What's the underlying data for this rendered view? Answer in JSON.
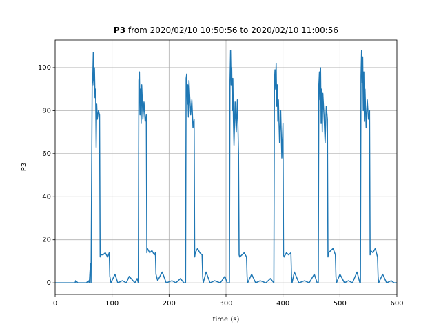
{
  "chart_data": {
    "type": "line",
    "title": {
      "bold": "P3",
      "rest": "from 2020/02/10 10:50:56 to 2020/02/10 11:00:56"
    },
    "xlabel": "time (s)",
    "ylabel": "P3",
    "x": [
      0,
      30,
      35,
      36,
      40,
      55,
      58,
      60,
      62,
      63,
      65,
      66,
      67,
      68,
      69,
      70,
      71,
      72,
      73,
      74,
      76,
      78,
      79,
      80,
      84,
      88,
      92,
      95,
      96,
      98,
      105,
      110,
      118,
      125,
      130,
      140,
      144,
      146,
      147,
      148,
      149,
      150,
      151,
      152,
      153,
      154,
      156,
      158,
      160,
      161,
      162,
      166,
      170,
      174,
      176,
      177,
      180,
      188,
      195,
      205,
      212,
      220,
      226,
      229,
      230,
      231,
      232,
      233,
      234,
      235,
      236,
      238,
      240,
      242,
      244,
      245,
      246,
      250,
      254,
      258,
      259,
      260,
      265,
      272,
      280,
      290,
      298,
      302,
      306,
      307,
      308,
      309,
      310,
      311,
      312,
      313,
      314,
      316,
      318,
      320,
      322,
      323,
      324,
      328,
      332,
      336,
      337,
      338,
      345,
      352,
      360,
      370,
      378,
      384,
      385,
      386,
      387,
      388,
      389,
      390,
      391,
      392,
      394,
      396,
      398,
      400,
      401,
      402,
      406,
      410,
      414,
      415,
      416,
      420,
      428,
      438,
      446,
      455,
      460,
      462,
      463,
      464,
      465,
      466,
      467,
      468,
      469,
      470,
      472,
      474,
      476,
      478,
      479,
      480,
      484,
      488,
      492,
      493,
      494,
      500,
      508,
      515,
      522,
      530,
      535,
      536,
      537,
      538,
      539,
      540,
      541,
      542,
      543,
      544,
      546,
      548,
      550,
      552,
      553,
      554,
      558,
      562,
      566,
      567,
      568,
      575,
      582,
      590,
      595,
      600
    ],
    "series": [
      {
        "name": "P3",
        "color": "#1f77b4",
        "values": [
          0,
          0,
          0,
          1,
          0,
          0,
          1,
          0,
          9,
          0,
          91,
          94,
          107,
          92,
          100,
          86,
          90,
          63,
          83,
          76,
          80,
          78,
          12,
          13,
          13,
          14,
          12,
          14,
          3,
          0,
          4,
          0,
          1,
          0,
          3,
          0,
          2,
          0,
          94,
          98,
          78,
          90,
          74,
          92,
          85,
          76,
          84,
          75,
          78,
          14,
          16,
          14,
          15,
          13,
          14,
          4,
          1,
          5,
          0,
          1,
          0,
          2,
          0,
          0,
          95,
          97,
          83,
          92,
          77,
          94,
          88,
          78,
          85,
          72,
          76,
          12,
          14,
          16,
          14,
          13,
          3,
          0,
          5,
          0,
          1,
          0,
          3,
          0,
          0,
          94,
          108,
          92,
          100,
          80,
          95,
          75,
          64,
          84,
          70,
          85,
          60,
          13,
          12,
          13,
          14,
          12,
          3,
          0,
          4,
          0,
          1,
          0,
          2,
          0,
          93,
          99,
          90,
          102,
          82,
          92,
          75,
          85,
          65,
          80,
          58,
          74,
          13,
          12,
          14,
          13,
          14,
          3,
          0,
          5,
          0,
          1,
          0,
          4,
          0,
          0,
          92,
          98,
          85,
          100,
          74,
          90,
          70,
          88,
          78,
          65,
          82,
          76,
          12,
          14,
          15,
          16,
          13,
          3,
          0,
          4,
          0,
          1,
          0,
          5,
          0,
          0,
          96,
          108,
          93,
          105,
          80,
          98,
          75,
          90,
          72,
          85,
          76,
          80,
          13,
          15,
          14,
          16,
          12,
          3,
          0,
          4,
          0,
          1,
          0,
          0
        ]
      }
    ],
    "xlim": [
      0,
      600
    ],
    "xticks": [
      0,
      100,
      200,
      300,
      400,
      500,
      600
    ],
    "ylim": [
      -5.4,
      112.8
    ],
    "yticks": [
      0,
      20,
      40,
      60,
      80,
      100
    ],
    "grid": true
  }
}
